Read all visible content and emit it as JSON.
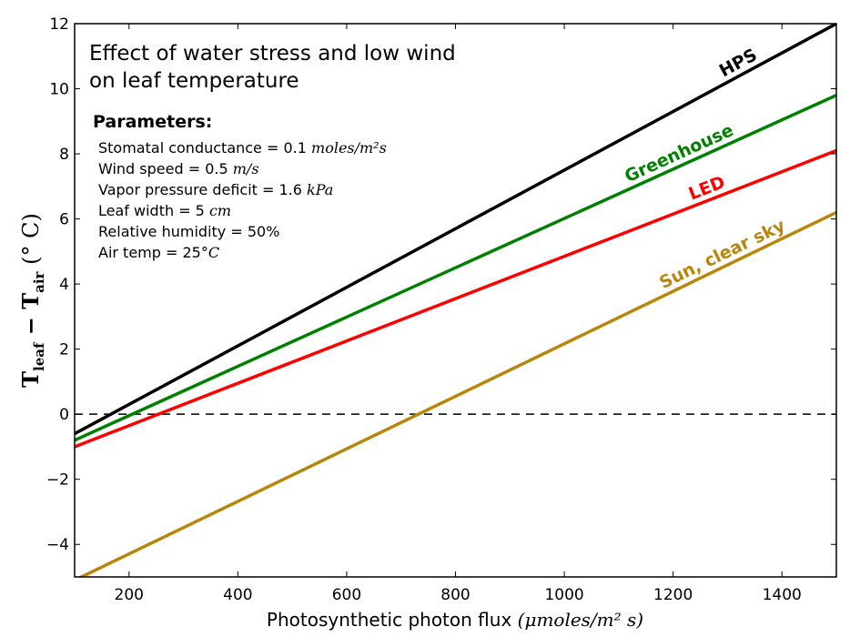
{
  "chart_data": {
    "type": "line",
    "title": "",
    "xlabel": "Photosynthetic photon flux",
    "xlabel_units": "(μmoles/m² s)",
    "ylabel_main": "T",
    "ylabel_sub1": "leaf",
    "ylabel_minus": " − T",
    "ylabel_sub2": "air",
    "ylabel_units": " (° C)",
    "xlim": [
      100,
      1500
    ],
    "ylim": [
      -5,
      12
    ],
    "xticks": [
      200,
      400,
      600,
      800,
      1000,
      1200,
      1400
    ],
    "xtick_labels": [
      "200",
      "400",
      "600",
      "800",
      "1000",
      "1200",
      "1400"
    ],
    "yticks": [
      -4,
      -2,
      0,
      2,
      4,
      6,
      8,
      10,
      12
    ],
    "ytick_labels": [
      "−4",
      "−2",
      "0",
      "2",
      "4",
      "6",
      "8",
      "10",
      "12"
    ],
    "grid": false,
    "reference_line": {
      "y": 0,
      "style": "dashed",
      "color": "#000000"
    },
    "series": [
      {
        "name": "HPS",
        "color": "#000000",
        "x": [
          100,
          1500
        ],
        "y": [
          -0.6,
          12.0
        ],
        "label_at_x": 1330
      },
      {
        "name": "Greenhouse",
        "color": "#008000",
        "x": [
          100,
          1500
        ],
        "y": [
          -0.8,
          9.8
        ],
        "label_at_x": 1220
      },
      {
        "name": "LED",
        "color": "#ff0000",
        "x": [
          100,
          1500
        ],
        "y": [
          -1.0,
          8.1
        ],
        "label_at_x": 1270
      },
      {
        "name": "Sun, clear sky",
        "color": "#b8860b",
        "x": [
          100,
          1500
        ],
        "y": [
          -5.1,
          6.2
        ],
        "label_at_x": 1300
      }
    ],
    "annotation": {
      "title_line1": "Effect of water stress and low wind",
      "title_line2": "on leaf temperature",
      "heading": "Parameters:",
      "params": [
        {
          "text": "Stomatal conductance = 0.1 ",
          "unit": "moles/m²s"
        },
        {
          "text": "Wind speed = 0.5 ",
          "unit": "m/s"
        },
        {
          "text": "Vapor pressure deficit = 1.6 ",
          "unit": "kPa"
        },
        {
          "text": "Leaf width =  5 ",
          "unit": "cm"
        },
        {
          "text": "Relative humidity = 50%",
          "unit": ""
        },
        {
          "text": "Air temp = 25",
          "unit": "°C"
        }
      ]
    }
  }
}
